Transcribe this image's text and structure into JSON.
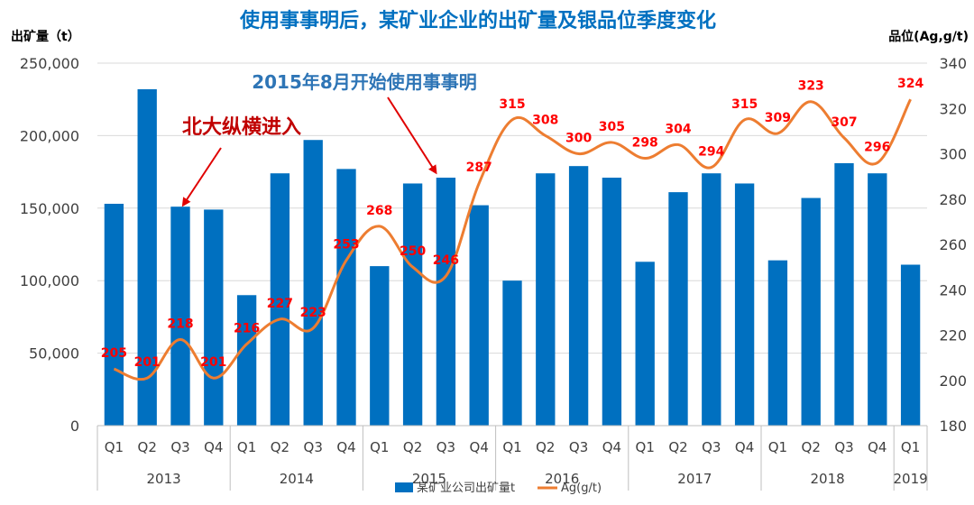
{
  "chart_data": {
    "type": "bar",
    "title": "使用事事明后，某矿业企业的出矿量及银品位季度变化",
    "ylabel_left": "出矿量（t）",
    "ylabel_right": "品位(Ag,g/t)",
    "ylim_left": [
      0,
      250000
    ],
    "ylim_right": [
      180,
      340
    ],
    "yticks_left": [
      "0",
      "50,000",
      "100,000",
      "150,000",
      "200,000",
      "250,000"
    ],
    "yticks_right": [
      "180",
      "200",
      "220",
      "240",
      "260",
      "280",
      "300",
      "320",
      "340"
    ],
    "quarters": [
      "Q1",
      "Q2",
      "Q3",
      "Q4",
      "Q1",
      "Q2",
      "Q3",
      "Q4",
      "Q1",
      "Q2",
      "Q3",
      "Q4",
      "Q1",
      "Q2",
      "Q3",
      "Q4",
      "Q1",
      "Q2",
      "Q3",
      "Q4",
      "Q1",
      "Q2",
      "Q3",
      "Q4",
      "Q1"
    ],
    "years": [
      {
        "label": "2013",
        "count": 4
      },
      {
        "label": "2014",
        "count": 4
      },
      {
        "label": "2015",
        "count": 4
      },
      {
        "label": "2016",
        "count": 4
      },
      {
        "label": "2017",
        "count": 4
      },
      {
        "label": "2018",
        "count": 4
      },
      {
        "label": "2019",
        "count": 1
      }
    ],
    "series": [
      {
        "name": "某矿业公司出矿量t",
        "type": "bar",
        "axis": "left",
        "color": "#0070C0",
        "values": [
          153000,
          232000,
          151000,
          149000,
          90000,
          174000,
          197000,
          177000,
          110000,
          167000,
          171000,
          152000,
          100000,
          174000,
          179000,
          171000,
          113000,
          161000,
          174000,
          167000,
          114000,
          157000,
          181000,
          174000,
          111000
        ]
      },
      {
        "name": "Ag(g/t)",
        "type": "line",
        "axis": "right",
        "color": "#ED7D31",
        "values": [
          205,
          201,
          218,
          201,
          216,
          227,
          223,
          253,
          268,
          250,
          246,
          287,
          315,
          308,
          300,
          305,
          298,
          304,
          294,
          315,
          309,
          323,
          307,
          296,
          324
        ],
        "label_color": "#FF0000"
      }
    ],
    "annotations": [
      {
        "text": "北大纵横进入",
        "color": "#C00000",
        "target_index": 2
      },
      {
        "text": "2015年8月开始使用事事明",
        "color": "#2E75B6",
        "target_index": 10
      }
    ]
  }
}
